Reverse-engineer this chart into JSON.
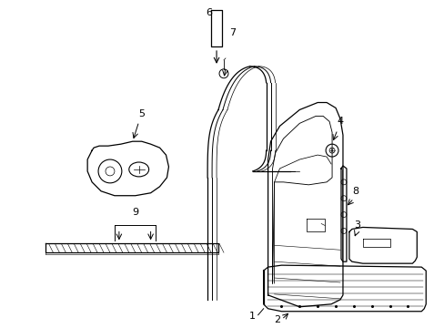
{
  "bg_color": "#ffffff",
  "line_color": "#000000",
  "fig_width": 4.89,
  "fig_height": 3.6,
  "dpi": 100,
  "seal_color": "#000000",
  "door_color": "#000000"
}
